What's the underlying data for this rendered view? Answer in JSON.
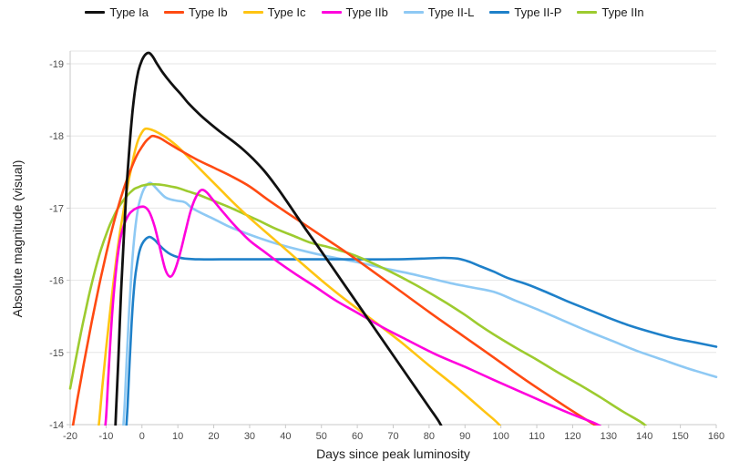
{
  "chart_data": {
    "type": "line",
    "title": "",
    "xlabel": "Days since peak luminosity",
    "ylabel": "Absolute magnitude (visual)",
    "xlim": [
      -20,
      160
    ],
    "ylim": [
      -19.2,
      -14
    ],
    "x_ticks": [
      -20,
      -10,
      0,
      10,
      20,
      30,
      40,
      50,
      60,
      70,
      80,
      90,
      100,
      110,
      120,
      130,
      140,
      150,
      160
    ],
    "y_ticks": [
      -19,
      -18,
      -17,
      -16,
      -15,
      -14
    ],
    "grid": "horizontal",
    "legend_position": "top",
    "series": [
      {
        "name": "Type Ia",
        "color": "#111111",
        "width": 2.8,
        "points": [
          [
            -7.6,
            -13.7
          ],
          [
            -7.2,
            -14.2
          ],
          [
            -6.5,
            -15.0
          ],
          [
            -5.8,
            -15.85
          ],
          [
            -5,
            -16.65
          ],
          [
            -4.2,
            -17.35
          ],
          [
            -3.4,
            -17.9
          ],
          [
            -2.6,
            -18.35
          ],
          [
            -1.8,
            -18.68
          ],
          [
            -1,
            -18.9
          ],
          [
            0,
            -19.05
          ],
          [
            1,
            -19.13
          ],
          [
            2,
            -19.15
          ],
          [
            3,
            -19.1
          ],
          [
            4.2,
            -19.0
          ],
          [
            5.5,
            -18.9
          ],
          [
            7,
            -18.8
          ],
          [
            9,
            -18.68
          ],
          [
            11,
            -18.57
          ],
          [
            13,
            -18.45
          ],
          [
            16,
            -18.3
          ],
          [
            19,
            -18.17
          ],
          [
            22,
            -18.05
          ],
          [
            25,
            -17.94
          ],
          [
            28,
            -17.82
          ],
          [
            31,
            -17.68
          ],
          [
            34,
            -17.52
          ],
          [
            37,
            -17.33
          ],
          [
            40,
            -17.12
          ],
          [
            43,
            -16.9
          ],
          [
            46,
            -16.68
          ],
          [
            50,
            -16.4
          ],
          [
            55,
            -16.04
          ],
          [
            60,
            -15.68
          ],
          [
            65,
            -15.32
          ],
          [
            70,
            -14.96
          ],
          [
            75,
            -14.6
          ],
          [
            80,
            -14.24
          ],
          [
            83,
            -14.02
          ],
          [
            84.5,
            -13.85
          ]
        ]
      },
      {
        "name": "Type Ib",
        "color": "#ff4a12",
        "width": 2.6,
        "points": [
          [
            -20,
            -13.75
          ],
          [
            -19,
            -14.05
          ],
          [
            -18,
            -14.35
          ],
          [
            -17,
            -14.62
          ],
          [
            -16,
            -14.9
          ],
          [
            -15,
            -15.16
          ],
          [
            -14,
            -15.42
          ],
          [
            -13,
            -15.67
          ],
          [
            -12,
            -15.91
          ],
          [
            -11,
            -16.14
          ],
          [
            -10,
            -16.36
          ],
          [
            -9,
            -16.57
          ],
          [
            -8,
            -16.77
          ],
          [
            -7,
            -16.95
          ],
          [
            -6,
            -17.12
          ],
          [
            -5,
            -17.28
          ],
          [
            -4,
            -17.42
          ],
          [
            -3,
            -17.55
          ],
          [
            -2,
            -17.67
          ],
          [
            -1,
            -17.77
          ],
          [
            0,
            -17.85
          ],
          [
            1,
            -17.92
          ],
          [
            2,
            -17.97
          ],
          [
            3,
            -18.0
          ],
          [
            5,
            -17.97
          ],
          [
            7,
            -17.91
          ],
          [
            10,
            -17.82
          ],
          [
            15,
            -17.68
          ],
          [
            20,
            -17.56
          ],
          [
            25,
            -17.44
          ],
          [
            30,
            -17.3
          ],
          [
            35,
            -17.12
          ],
          [
            40,
            -16.95
          ],
          [
            46,
            -16.75
          ],
          [
            52,
            -16.55
          ],
          [
            58,
            -16.35
          ],
          [
            65,
            -16.1
          ],
          [
            72,
            -15.85
          ],
          [
            80,
            -15.56
          ],
          [
            88,
            -15.28
          ],
          [
            98,
            -14.93
          ],
          [
            108,
            -14.58
          ],
          [
            118,
            -14.25
          ],
          [
            126,
            -14.0
          ],
          [
            131,
            -13.85
          ]
        ]
      },
      {
        "name": "Type Ic",
        "color": "#ffc412",
        "width": 2.6,
        "points": [
          [
            -12.6,
            -13.8
          ],
          [
            -12,
            -14.0
          ],
          [
            -11,
            -14.55
          ],
          [
            -10,
            -15.05
          ],
          [
            -9,
            -15.5
          ],
          [
            -8,
            -15.95
          ],
          [
            -7,
            -16.35
          ],
          [
            -6,
            -16.7
          ],
          [
            -5,
            -17.0
          ],
          [
            -4,
            -17.3
          ],
          [
            -3,
            -17.55
          ],
          [
            -2,
            -17.78
          ],
          [
            -1,
            -17.95
          ],
          [
            0,
            -18.05
          ],
          [
            1,
            -18.1
          ],
          [
            3,
            -18.08
          ],
          [
            5,
            -18.03
          ],
          [
            7,
            -17.97
          ],
          [
            10,
            -17.85
          ],
          [
            14,
            -17.65
          ],
          [
            18,
            -17.45
          ],
          [
            22,
            -17.25
          ],
          [
            26,
            -17.05
          ],
          [
            31,
            -16.82
          ],
          [
            37,
            -16.56
          ],
          [
            43,
            -16.3
          ],
          [
            50,
            -16.0
          ],
          [
            57,
            -15.72
          ],
          [
            65,
            -15.42
          ],
          [
            72,
            -15.15
          ],
          [
            80,
            -14.82
          ],
          [
            88,
            -14.5
          ],
          [
            95,
            -14.2
          ],
          [
            99.5,
            -14.0
          ],
          [
            101,
            -13.85
          ]
        ]
      },
      {
        "name": "Type IIb",
        "color": "#ff00dd",
        "width": 2.6,
        "points": [
          [
            -10.6,
            -13.8
          ],
          [
            -10,
            -14.1
          ],
          [
            -9.4,
            -14.65
          ],
          [
            -8.8,
            -15.15
          ],
          [
            -8.2,
            -15.6
          ],
          [
            -7.5,
            -16.0
          ],
          [
            -6.8,
            -16.32
          ],
          [
            -6,
            -16.58
          ],
          [
            -5,
            -16.77
          ],
          [
            -4,
            -16.88
          ],
          [
            -3,
            -16.95
          ],
          [
            -1.5,
            -17.0
          ],
          [
            0.5,
            -17.02
          ],
          [
            2,
            -16.95
          ],
          [
            3.5,
            -16.75
          ],
          [
            5,
            -16.45
          ],
          [
            6.5,
            -16.15
          ],
          [
            7.8,
            -16.05
          ],
          [
            9,
            -16.12
          ],
          [
            10.5,
            -16.35
          ],
          [
            12,
            -16.65
          ],
          [
            13.5,
            -16.95
          ],
          [
            15,
            -17.15
          ],
          [
            16.5,
            -17.25
          ],
          [
            18,
            -17.22
          ],
          [
            20,
            -17.1
          ],
          [
            23,
            -16.92
          ],
          [
            26,
            -16.75
          ],
          [
            30,
            -16.55
          ],
          [
            34,
            -16.4
          ],
          [
            38,
            -16.25
          ],
          [
            43,
            -16.08
          ],
          [
            48,
            -15.92
          ],
          [
            54,
            -15.72
          ],
          [
            60,
            -15.55
          ],
          [
            67,
            -15.35
          ],
          [
            74,
            -15.17
          ],
          [
            82,
            -14.97
          ],
          [
            90,
            -14.8
          ],
          [
            98,
            -14.62
          ],
          [
            108,
            -14.4
          ],
          [
            118,
            -14.18
          ],
          [
            127,
            -14.0
          ],
          [
            130,
            -13.88
          ]
        ]
      },
      {
        "name": "Type II-L",
        "color": "#8ec9f4",
        "width": 2.6,
        "points": [
          [
            -5.4,
            -13.8
          ],
          [
            -4.8,
            -14.3
          ],
          [
            -4.2,
            -14.95
          ],
          [
            -3.6,
            -15.55
          ],
          [
            -3,
            -16.05
          ],
          [
            -2.4,
            -16.45
          ],
          [
            -1.8,
            -16.75
          ],
          [
            -1,
            -17.02
          ],
          [
            0,
            -17.2
          ],
          [
            1,
            -17.3
          ],
          [
            2.3,
            -17.35
          ],
          [
            3.5,
            -17.3
          ],
          [
            5,
            -17.22
          ],
          [
            6.5,
            -17.15
          ],
          [
            8,
            -17.12
          ],
          [
            10,
            -17.1
          ],
          [
            12,
            -17.08
          ],
          [
            14,
            -17.0
          ],
          [
            17,
            -16.92
          ],
          [
            20,
            -16.85
          ],
          [
            24,
            -16.75
          ],
          [
            28,
            -16.67
          ],
          [
            33,
            -16.58
          ],
          [
            38,
            -16.5
          ],
          [
            44,
            -16.42
          ],
          [
            50,
            -16.35
          ],
          [
            56,
            -16.29
          ],
          [
            62,
            -16.23
          ],
          [
            68,
            -16.16
          ],
          [
            74,
            -16.1
          ],
          [
            80,
            -16.03
          ],
          [
            86,
            -15.96
          ],
          [
            92,
            -15.9
          ],
          [
            98,
            -15.84
          ],
          [
            104,
            -15.72
          ],
          [
            110,
            -15.6
          ],
          [
            117,
            -15.45
          ],
          [
            124,
            -15.3
          ],
          [
            131,
            -15.16
          ],
          [
            138,
            -15.02
          ],
          [
            145,
            -14.9
          ],
          [
            152,
            -14.78
          ],
          [
            160,
            -14.66
          ]
        ]
      },
      {
        "name": "Type II-P",
        "color": "#1e80c9",
        "width": 2.6,
        "points": [
          [
            -4.6,
            -13.8
          ],
          [
            -4,
            -14.25
          ],
          [
            -3.5,
            -14.8
          ],
          [
            -3,
            -15.3
          ],
          [
            -2.5,
            -15.7
          ],
          [
            -2,
            -16.0
          ],
          [
            -1.4,
            -16.22
          ],
          [
            -0.7,
            -16.4
          ],
          [
            0,
            -16.5
          ],
          [
            1,
            -16.57
          ],
          [
            2.2,
            -16.6
          ],
          [
            3.5,
            -16.56
          ],
          [
            5,
            -16.48
          ],
          [
            6.5,
            -16.41
          ],
          [
            8,
            -16.36
          ],
          [
            10,
            -16.32
          ],
          [
            12,
            -16.3
          ],
          [
            16,
            -16.29
          ],
          [
            22,
            -16.29
          ],
          [
            30,
            -16.29
          ],
          [
            40,
            -16.29
          ],
          [
            50,
            -16.29
          ],
          [
            60,
            -16.29
          ],
          [
            70,
            -16.29
          ],
          [
            78,
            -16.3
          ],
          [
            84,
            -16.31
          ],
          [
            88,
            -16.3
          ],
          [
            91,
            -16.26
          ],
          [
            94,
            -16.2
          ],
          [
            98,
            -16.12
          ],
          [
            102,
            -16.03
          ],
          [
            107,
            -15.95
          ],
          [
            112,
            -15.85
          ],
          [
            118,
            -15.72
          ],
          [
            124,
            -15.6
          ],
          [
            130,
            -15.48
          ],
          [
            136,
            -15.37
          ],
          [
            142,
            -15.28
          ],
          [
            148,
            -15.2
          ],
          [
            154,
            -15.14
          ],
          [
            160,
            -15.08
          ]
        ]
      },
      {
        "name": "Type IIn",
        "color": "#9dcb2f",
        "width": 2.6,
        "points": [
          [
            -20,
            -14.5
          ],
          [
            -19,
            -14.76
          ],
          [
            -18,
            -15.02
          ],
          [
            -17,
            -15.27
          ],
          [
            -16,
            -15.51
          ],
          [
            -15,
            -15.74
          ],
          [
            -14,
            -15.95
          ],
          [
            -13,
            -16.15
          ],
          [
            -12,
            -16.33
          ],
          [
            -11,
            -16.49
          ],
          [
            -10,
            -16.63
          ],
          [
            -9,
            -16.76
          ],
          [
            -8,
            -16.87
          ],
          [
            -7,
            -16.97
          ],
          [
            -6,
            -17.05
          ],
          [
            -5,
            -17.12
          ],
          [
            -4,
            -17.18
          ],
          [
            -3,
            -17.23
          ],
          [
            -2,
            -17.27
          ],
          [
            -1,
            -17.29
          ],
          [
            0,
            -17.31
          ],
          [
            2,
            -17.33
          ],
          [
            4,
            -17.33
          ],
          [
            6,
            -17.32
          ],
          [
            8,
            -17.3
          ],
          [
            10,
            -17.28
          ],
          [
            13,
            -17.23
          ],
          [
            16,
            -17.18
          ],
          [
            20,
            -17.1
          ],
          [
            24,
            -17.02
          ],
          [
            28,
            -16.93
          ],
          [
            32,
            -16.84
          ],
          [
            37,
            -16.72
          ],
          [
            42,
            -16.62
          ],
          [
            47,
            -16.52
          ],
          [
            52,
            -16.46
          ],
          [
            56,
            -16.4
          ],
          [
            60,
            -16.33
          ],
          [
            65,
            -16.22
          ],
          [
            70,
            -16.1
          ],
          [
            75,
            -15.97
          ],
          [
            80,
            -15.83
          ],
          [
            85,
            -15.68
          ],
          [
            90,
            -15.52
          ],
          [
            94,
            -15.38
          ],
          [
            98,
            -15.25
          ],
          [
            104,
            -15.07
          ],
          [
            110,
            -14.9
          ],
          [
            116,
            -14.72
          ],
          [
            122,
            -14.55
          ],
          [
            128,
            -14.37
          ],
          [
            134,
            -14.18
          ],
          [
            140,
            -14.0
          ],
          [
            142,
            -13.85
          ]
        ]
      }
    ]
  },
  "colors": {
    "background": "#ffffff",
    "grid_line": "#e6e6e6",
    "axis_line": "#c9c9c9",
    "tick_label": "#4a4a4a",
    "axis_title": "#1f1f1f",
    "legend_text": "#1a1a1a"
  }
}
